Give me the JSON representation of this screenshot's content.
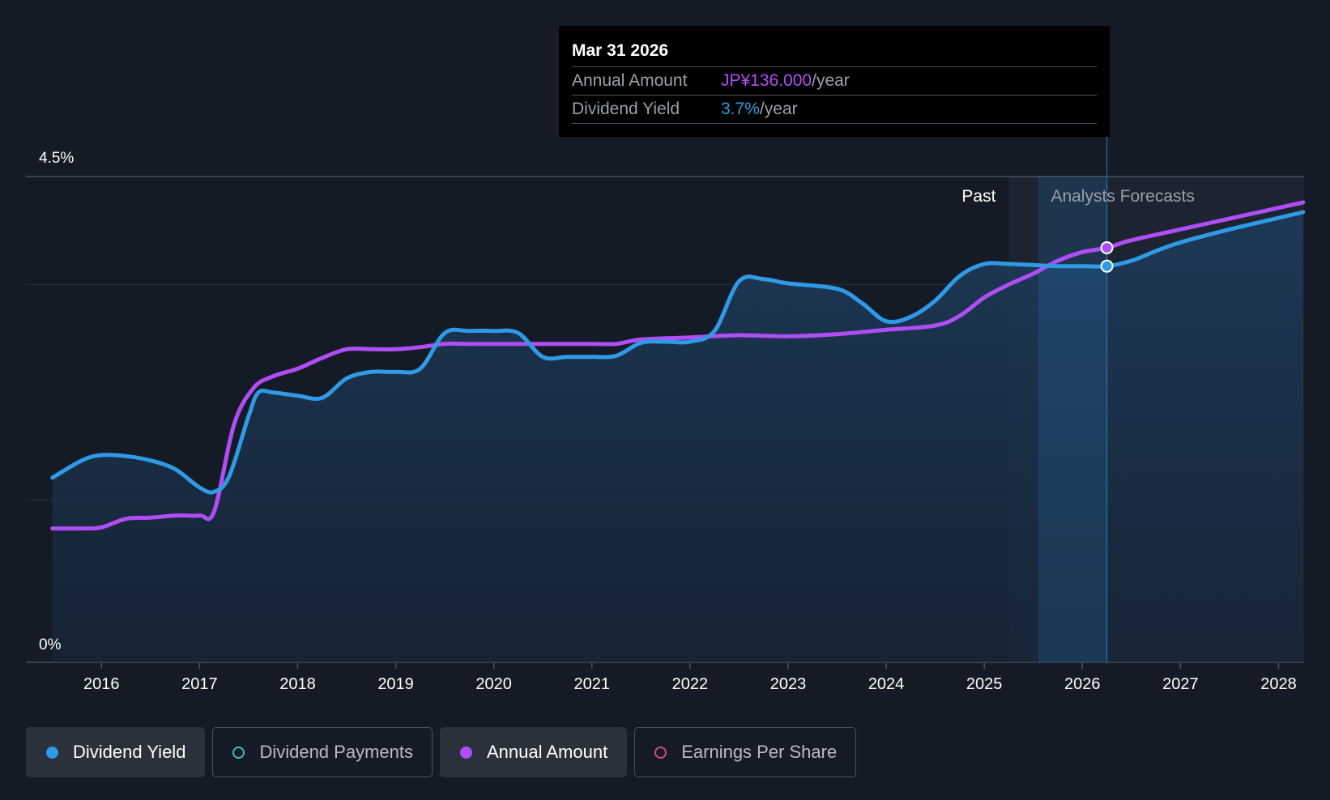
{
  "tooltip": {
    "date": "Mar 31 2026",
    "rows": [
      {
        "label": "Annual Amount",
        "value": "JP¥136.000",
        "suffix": "/year"
      },
      {
        "label": "Dividend Yield",
        "value": "3.7%",
        "suffix": "/year"
      }
    ]
  },
  "legend": [
    {
      "label": "Dividend Yield",
      "color": "#2f9ae6",
      "active": true,
      "filled": true
    },
    {
      "label": "Dividend Payments",
      "color": "#3fbfae",
      "active": false,
      "filled": false
    },
    {
      "label": "Annual Amount",
      "color": "#b04ef5",
      "active": true,
      "filled": true
    },
    {
      "label": "Earnings Per Share",
      "color": "#d14a8a",
      "active": false,
      "filled": false
    }
  ],
  "colors": {
    "yield": "#2f9ae6",
    "amount": "#b04ef5",
    "background": "#151b26"
  },
  "chart_data": {
    "type": "line",
    "y_ticks": [
      "4.5%",
      "0%"
    ],
    "ylim": [
      0,
      4.5
    ],
    "x_ticks": [
      "2016",
      "2017",
      "2018",
      "2019",
      "2020",
      "2021",
      "2022",
      "2023",
      "2024",
      "2025",
      "2026",
      "2027",
      "2028"
    ],
    "xlim": [
      2015.0,
      2028.25
    ],
    "past_label": "Past",
    "forecast_label": "Analysts Forecasts",
    "forecast_start": 2025.25,
    "highlight_date": 2026.25,
    "series": [
      {
        "name": "Dividend Yield",
        "points": [
          [
            2015.5,
            1.71
          ],
          [
            2015.8,
            1.87
          ],
          [
            2016.0,
            1.92
          ],
          [
            2016.25,
            1.91
          ],
          [
            2016.5,
            1.87
          ],
          [
            2016.75,
            1.79
          ],
          [
            2017.0,
            1.62
          ],
          [
            2017.15,
            1.58
          ],
          [
            2017.3,
            1.72
          ],
          [
            2017.5,
            2.28
          ],
          [
            2017.6,
            2.5
          ],
          [
            2017.75,
            2.5
          ],
          [
            2018.0,
            2.47
          ],
          [
            2018.25,
            2.45
          ],
          [
            2018.5,
            2.63
          ],
          [
            2018.75,
            2.69
          ],
          [
            2019.0,
            2.69
          ],
          [
            2019.25,
            2.72
          ],
          [
            2019.5,
            3.05
          ],
          [
            2019.75,
            3.07
          ],
          [
            2020.0,
            3.07
          ],
          [
            2020.25,
            3.05
          ],
          [
            2020.5,
            2.83
          ],
          [
            2020.75,
            2.83
          ],
          [
            2021.0,
            2.83
          ],
          [
            2021.25,
            2.84
          ],
          [
            2021.5,
            2.96
          ],
          [
            2021.75,
            2.97
          ],
          [
            2022.0,
            2.97
          ],
          [
            2022.25,
            3.07
          ],
          [
            2022.5,
            3.53
          ],
          [
            2022.75,
            3.55
          ],
          [
            2023.0,
            3.51
          ],
          [
            2023.5,
            3.46
          ],
          [
            2023.75,
            3.33
          ],
          [
            2024.0,
            3.16
          ],
          [
            2024.25,
            3.2
          ],
          [
            2024.5,
            3.35
          ],
          [
            2024.75,
            3.58
          ],
          [
            2025.0,
            3.69
          ],
          [
            2025.25,
            3.69
          ],
          [
            2025.5,
            3.68
          ],
          [
            2025.75,
            3.67
          ],
          [
            2026.0,
            3.67
          ],
          [
            2026.25,
            3.67
          ],
          [
            2026.5,
            3.72
          ],
          [
            2026.75,
            3.81
          ],
          [
            2027.0,
            3.89
          ],
          [
            2027.5,
            4.01
          ],
          [
            2028.25,
            4.17
          ]
        ]
      },
      {
        "name": "Annual Amount",
        "points": [
          [
            2015.5,
            1.24
          ],
          [
            2015.8,
            1.24
          ],
          [
            2016.0,
            1.25
          ],
          [
            2016.25,
            1.33
          ],
          [
            2016.5,
            1.34
          ],
          [
            2016.75,
            1.36
          ],
          [
            2017.0,
            1.36
          ],
          [
            2017.15,
            1.4
          ],
          [
            2017.35,
            2.2
          ],
          [
            2017.55,
            2.54
          ],
          [
            2017.75,
            2.65
          ],
          [
            2018.0,
            2.72
          ],
          [
            2018.25,
            2.82
          ],
          [
            2018.5,
            2.9
          ],
          [
            2018.75,
            2.9
          ],
          [
            2019.0,
            2.9
          ],
          [
            2019.25,
            2.92
          ],
          [
            2019.5,
            2.95
          ],
          [
            2019.75,
            2.95
          ],
          [
            2020.0,
            2.95
          ],
          [
            2021.0,
            2.95
          ],
          [
            2021.25,
            2.95
          ],
          [
            2021.5,
            2.99
          ],
          [
            2022.0,
            3.01
          ],
          [
            2022.5,
            3.03
          ],
          [
            2023.0,
            3.02
          ],
          [
            2023.5,
            3.04
          ],
          [
            2024.0,
            3.08
          ],
          [
            2024.5,
            3.12
          ],
          [
            2024.75,
            3.21
          ],
          [
            2025.0,
            3.38
          ],
          [
            2025.25,
            3.5
          ],
          [
            2025.5,
            3.6
          ],
          [
            2025.75,
            3.72
          ],
          [
            2026.0,
            3.8
          ],
          [
            2026.25,
            3.84
          ],
          [
            2026.5,
            3.91
          ],
          [
            2027.0,
            4.01
          ],
          [
            2027.5,
            4.11
          ],
          [
            2028.0,
            4.21
          ],
          [
            2028.25,
            4.26
          ]
        ]
      }
    ]
  }
}
